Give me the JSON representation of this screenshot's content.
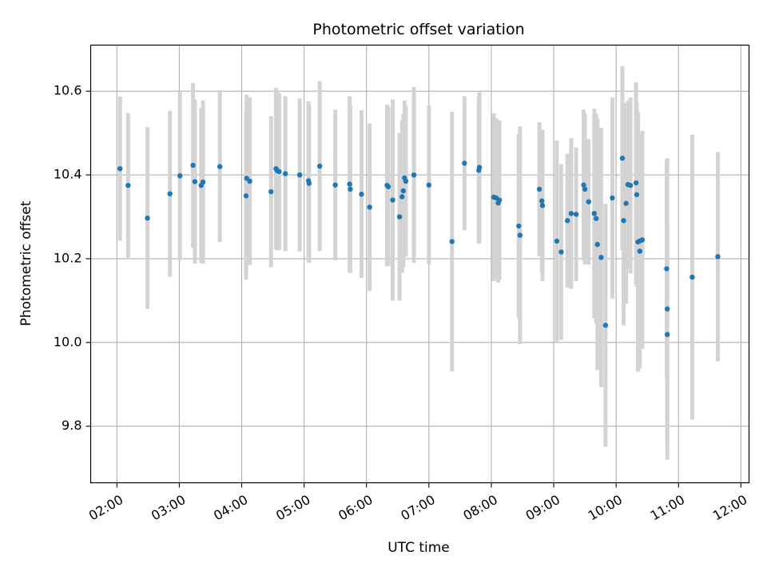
{
  "chart_data": {
    "type": "scatter",
    "title": "Photometric offset variation",
    "xlabel": "UTC time",
    "ylabel": "Photometric offset",
    "grid": true,
    "legend": "none",
    "xlim": [
      1.58,
      12.13
    ],
    "ylim": [
      9.665,
      10.71
    ],
    "xticks": [
      2,
      3,
      4,
      5,
      6,
      7,
      8,
      9,
      10,
      11,
      12
    ],
    "xtick_labels": [
      "02:00",
      "03:00",
      "04:00",
      "05:00",
      "06:00",
      "07:00",
      "08:00",
      "09:00",
      "10:00",
      "11:00",
      "12:00"
    ],
    "yticks": [
      9.8,
      10.0,
      10.2,
      10.4,
      10.6
    ],
    "ytick_labels": [
      "9.8",
      "10.0",
      "10.2",
      "10.4",
      "10.6"
    ],
    "colors": {
      "points": "#1f77b4",
      "errorbars": "#d3d3d3",
      "grid": "#b0b0b0"
    },
    "series": [
      {
        "name": "offset",
        "x": [
          2.05,
          2.18,
          2.49,
          2.85,
          3.01,
          3.22,
          3.25,
          3.35,
          3.38,
          3.65,
          4.07,
          4.08,
          4.13,
          4.47,
          4.55,
          4.57,
          4.6,
          4.7,
          4.93,
          5.07,
          5.08,
          5.25,
          5.5,
          5.73,
          5.74,
          5.92,
          6.05,
          6.33,
          6.35,
          6.42,
          6.53,
          6.57,
          6.59,
          6.61,
          6.63,
          6.76,
          7.0,
          7.37,
          7.57,
          7.8,
          7.81,
          8.04,
          8.08,
          8.11,
          8.13,
          8.44,
          8.46,
          8.77,
          8.81,
          8.82,
          9.05,
          9.12,
          9.22,
          9.28,
          9.36,
          9.48,
          9.5,
          9.56,
          9.65,
          9.68,
          9.7,
          9.76,
          9.83,
          9.94,
          10.1,
          10.12,
          10.16,
          10.19,
          10.23,
          10.32,
          10.33,
          10.35,
          10.38,
          10.39,
          10.42,
          10.81,
          10.82,
          10.82,
          11.22,
          11.63
        ],
        "y": [
          10.415,
          10.375,
          10.297,
          10.355,
          10.398,
          10.423,
          10.384,
          10.375,
          10.383,
          10.42,
          10.35,
          10.392,
          10.385,
          10.36,
          10.415,
          10.41,
          10.408,
          10.403,
          10.4,
          10.386,
          10.38,
          10.421,
          10.376,
          10.378,
          10.366,
          10.354,
          10.323,
          10.375,
          10.372,
          10.34,
          10.3,
          10.348,
          10.362,
          10.393,
          10.385,
          10.4,
          10.376,
          10.241,
          10.428,
          10.411,
          10.418,
          10.347,
          10.345,
          10.333,
          10.34,
          10.278,
          10.256,
          10.366,
          10.338,
          10.327,
          10.242,
          10.216,
          10.291,
          10.308,
          10.306,
          10.376,
          10.366,
          10.336,
          10.308,
          10.296,
          10.234,
          10.203,
          10.041,
          10.345,
          10.44,
          10.291,
          10.332,
          10.377,
          10.375,
          10.381,
          10.353,
          10.24,
          10.218,
          10.243,
          10.245,
          10.176,
          10.08,
          10.019,
          10.156,
          10.205
        ],
        "yerr": [
          0.172,
          0.173,
          0.217,
          0.198,
          0.202,
          0.197,
          0.196,
          0.185,
          0.195,
          0.18,
          0.2,
          0.2,
          0.2,
          0.18,
          0.193,
          0.19,
          0.187,
          0.185,
          0.183,
          0.19,
          0.19,
          0.203,
          0.18,
          0.21,
          0.2,
          0.2,
          0.2,
          0.193,
          0.19,
          0.24,
          0.2,
          0.182,
          0.183,
          0.185,
          0.18,
          0.21,
          0.19,
          0.31,
          0.16,
          0.175,
          0.18,
          0.2,
          0.19,
          0.19,
          0.19,
          0.22,
          0.26,
          0.16,
          0.17,
          0.18,
          0.24,
          0.21,
          0.16,
          0.18,
          0.16,
          0.18,
          0.18,
          0.15,
          0.25,
          0.25,
          0.3,
          0.31,
          0.29,
          0.24,
          0.22,
          0.25,
          0.24,
          0.2,
          0.21,
          0.24,
          0.22,
          0.31,
          0.28,
          0.25,
          0.26,
          0.26,
          0.36,
          0.26,
          0.34,
          0.25
        ]
      }
    ]
  }
}
